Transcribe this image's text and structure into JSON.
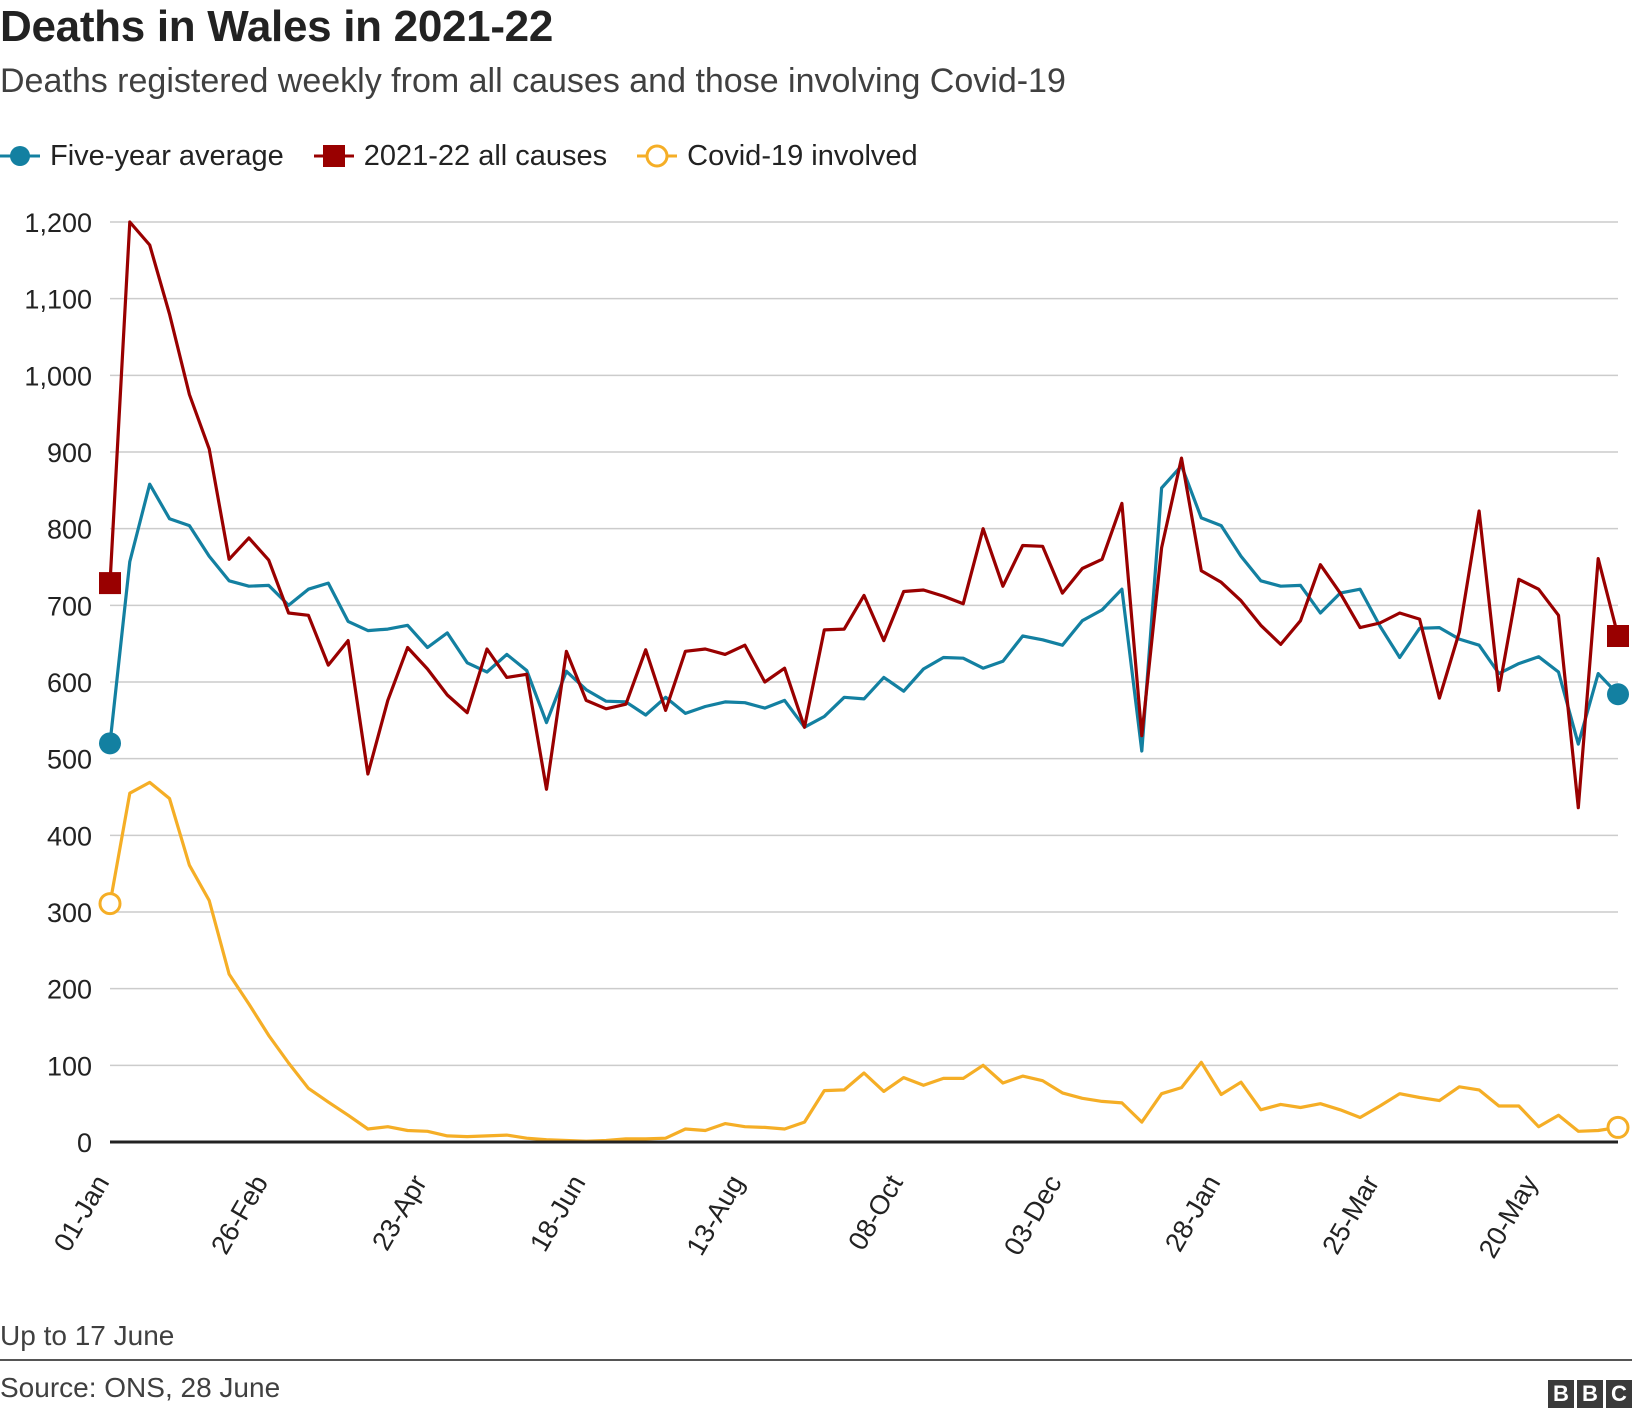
{
  "title": "Deaths in Wales in 2021-22",
  "subtitle": "Deaths registered weekly from all causes and those involving Covid-19",
  "note": "Up to 17 June",
  "source": "Source: ONS, 28 June",
  "logo": [
    "B",
    "B",
    "C"
  ],
  "legend": [
    {
      "label": "Five-year average",
      "color": "#1380a1",
      "marker": "circle"
    },
    {
      "label": "2021-22 all causes",
      "color": "#990000",
      "marker": "square"
    },
    {
      "label": "Covid-19 involved",
      "color": "#f5ae26",
      "marker": "hollow-circle"
    }
  ],
  "chart_data": {
    "type": "line",
    "title": "Deaths in Wales in 2021-22",
    "xlabel": "",
    "ylabel": "",
    "ylim": [
      0,
      1200
    ],
    "yticks": [
      0,
      100,
      200,
      300,
      400,
      500,
      600,
      700,
      800,
      900,
      1000,
      1100,
      1200
    ],
    "ytick_labels": [
      "0",
      "100",
      "200",
      "300",
      "400",
      "500",
      "600",
      "700",
      "800",
      "900",
      "1,000",
      "1,100",
      "1,200"
    ],
    "xtick_labels": [
      "01-Jan",
      "26-Feb",
      "23-Apr",
      "18-Jun",
      "13-Aug",
      "08-Oct",
      "03-Dec",
      "28-Jan",
      "25-Mar",
      "20-May"
    ],
    "xtick_week_index": [
      0,
      8,
      16,
      24,
      32,
      40,
      48,
      56,
      64,
      72
    ],
    "x_start": "01-Jan-2021",
    "x_end": "17-Jun-2022",
    "grid": true,
    "series": [
      {
        "name": "Five-year average",
        "color": "#1380a1",
        "values": [
          520,
          757,
          858,
          813,
          804,
          764,
          732,
          725,
          726,
          700,
          721,
          729,
          679,
          667,
          669,
          674,
          645,
          664,
          625,
          613,
          636,
          615,
          547,
          614,
          590,
          575,
          574,
          557,
          580,
          559,
          568,
          574,
          573,
          566,
          576,
          541,
          555,
          580,
          578,
          606,
          588,
          617,
          632,
          631,
          618,
          627,
          660,
          655,
          648,
          680,
          694,
          721,
          510,
          853,
          882,
          814,
          804,
          764,
          732,
          725,
          726,
          690,
          716,
          721,
          673,
          632,
          670,
          671,
          656,
          648,
          611,
          624,
          633,
          613,
          519,
          611,
          584
        ]
      },
      {
        "name": "2021-22 all causes",
        "color": "#990000",
        "values": [
          729,
          1200,
          1170,
          1080,
          975,
          904,
          760,
          788,
          759,
          690,
          687,
          622,
          654,
          480,
          576,
          645,
          617,
          583,
          560,
          643,
          606,
          610,
          460,
          640,
          576,
          565,
          571,
          642,
          563,
          640,
          643,
          636,
          648,
          600,
          618,
          541,
          668,
          669,
          713,
          654,
          718,
          720,
          712,
          702,
          800,
          725,
          778,
          777,
          716,
          748,
          760,
          833,
          530,
          775,
          892,
          745,
          730,
          706,
          674,
          649,
          680,
          753,
          716,
          671,
          677,
          690,
          682,
          579,
          665,
          823,
          589,
          734,
          721,
          687,
          436,
          761,
          660
        ]
      },
      {
        "name": "Covid-19 involved",
        "color": "#f5ae26",
        "values": [
          311,
          455,
          469,
          448,
          361,
          315,
          219,
          180,
          139,
          103,
          70,
          52,
          35,
          17,
          20,
          15,
          14,
          8,
          7,
          8,
          9,
          5,
          3,
          2,
          1,
          2,
          4,
          4,
          5,
          17,
          15,
          24,
          20,
          19,
          17,
          26,
          67,
          68,
          90,
          66,
          84,
          74,
          83,
          83,
          100,
          77,
          86,
          80,
          64,
          57,
          53,
          51,
          26,
          63,
          71,
          104,
          62,
          78,
          42,
          49,
          45,
          50,
          42,
          32,
          47,
          63,
          58,
          54,
          72,
          68,
          47,
          47,
          20,
          35,
          14,
          15,
          19
        ]
      }
    ]
  }
}
